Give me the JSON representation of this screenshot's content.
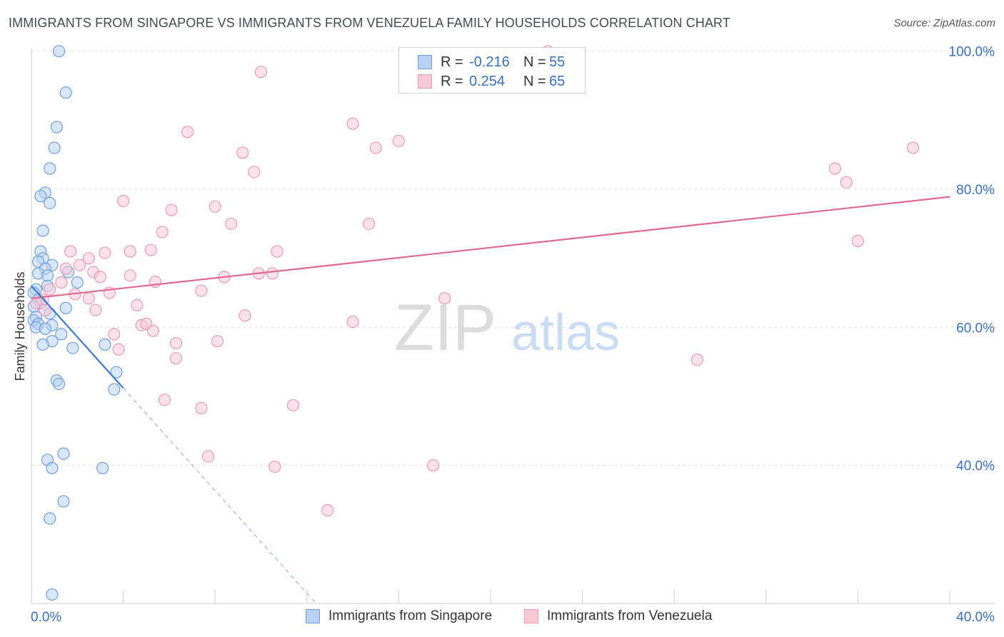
{
  "title": "IMMIGRANTS FROM SINGAPORE VS IMMIGRANTS FROM VENEZUELA FAMILY HOUSEHOLDS CORRELATION CHART",
  "source": "Source: ZipAtlas.com",
  "watermark": {
    "zip": "ZIP",
    "atlas": "atlas"
  },
  "legend": {
    "rows": [
      {
        "r_label": "R =",
        "r_value": "-0.216",
        "n_label": "N =",
        "n_value": "55"
      },
      {
        "r_label": "R =",
        "r_value": "0.254",
        "n_label": "N =",
        "n_value": "65"
      }
    ]
  },
  "colors": {
    "blue_fill": "#b8d1f3",
    "blue_stroke": "#6f9fde",
    "blue_line": "#3a7bd5",
    "pink_fill": "#f8c8d7",
    "pink_stroke": "#ec9ab5",
    "pink_line": "#e06893",
    "axis_label": "#3a6fc4",
    "grid": "#e0e0e0"
  },
  "chart_data": {
    "type": "scatter",
    "title": "IMMIGRANTS FROM SINGAPORE VS IMMIGRANTS FROM VENEZUELA FAMILY HOUSEHOLDS CORRELATION CHART",
    "xlabel": "",
    "ylabel": "Family Households",
    "xlim": [
      0,
      40
    ],
    "ylim": [
      20,
      101
    ],
    "x_tick_labels": [
      "0.0%",
      "40.0%"
    ],
    "y_ticks": [
      40,
      60,
      80,
      100
    ],
    "y_tick_labels": [
      "40.0%",
      "60.0%",
      "80.0%",
      "100.0%"
    ],
    "series": [
      {
        "name": "Immigrants from Singapore",
        "color": "blue",
        "points": [
          [
            1.2,
            100.0
          ],
          [
            1.5,
            94.0
          ],
          [
            1.1,
            89.0
          ],
          [
            1.0,
            86.0
          ],
          [
            0.8,
            83.0
          ],
          [
            0.6,
            79.5
          ],
          [
            0.4,
            79.0
          ],
          [
            0.8,
            78.0
          ],
          [
            0.5,
            74.0
          ],
          [
            0.4,
            71.0
          ],
          [
            0.5,
            70.0
          ],
          [
            0.3,
            69.5
          ],
          [
            0.9,
            69.0
          ],
          [
            0.6,
            68.5
          ],
          [
            1.6,
            68.0
          ],
          [
            0.3,
            67.8
          ],
          [
            0.7,
            67.5
          ],
          [
            2.0,
            66.5
          ],
          [
            0.7,
            66.0
          ],
          [
            0.2,
            65.5
          ],
          [
            0.1,
            65.0
          ],
          [
            0.3,
            64.0
          ],
          [
            0.4,
            63.5
          ],
          [
            0.1,
            63.0
          ],
          [
            1.5,
            62.8
          ],
          [
            0.8,
            62.0
          ],
          [
            0.2,
            61.5
          ],
          [
            0.1,
            61.0
          ],
          [
            0.3,
            60.5
          ],
          [
            0.9,
            60.3
          ],
          [
            0.2,
            60.0
          ],
          [
            0.6,
            59.8
          ],
          [
            1.3,
            59.0
          ],
          [
            0.9,
            58.0
          ],
          [
            0.5,
            57.5
          ],
          [
            1.8,
            57.0
          ],
          [
            3.2,
            57.5
          ],
          [
            3.7,
            53.5
          ],
          [
            1.1,
            52.3
          ],
          [
            1.2,
            51.8
          ],
          [
            3.6,
            51.0
          ],
          [
            1.4,
            41.7
          ],
          [
            0.7,
            40.8
          ],
          [
            0.9,
            39.6
          ],
          [
            3.1,
            39.6
          ],
          [
            1.4,
            34.8
          ],
          [
            0.8,
            32.3
          ],
          [
            0.9,
            21.3
          ]
        ]
      },
      {
        "name": "Immigrants from Venezuela",
        "color": "pink",
        "points": [
          [
            22.5,
            100.0
          ],
          [
            10.0,
            97.0
          ],
          [
            14.0,
            89.5
          ],
          [
            16.0,
            87.0
          ],
          [
            6.8,
            88.3
          ],
          [
            15.0,
            86.0
          ],
          [
            9.2,
            85.3
          ],
          [
            9.7,
            82.5
          ],
          [
            38.4,
            86.0
          ],
          [
            35.0,
            83.0
          ],
          [
            35.5,
            81.0
          ],
          [
            4.0,
            78.3
          ],
          [
            8.0,
            77.5
          ],
          [
            6.1,
            77.0
          ],
          [
            14.7,
            75.0
          ],
          [
            8.7,
            75.0
          ],
          [
            5.7,
            73.8
          ],
          [
            36.0,
            72.5
          ],
          [
            1.7,
            71.0
          ],
          [
            3.2,
            70.8
          ],
          [
            4.3,
            71.0
          ],
          [
            5.2,
            71.2
          ],
          [
            10.7,
            71.0
          ],
          [
            2.5,
            70.0
          ],
          [
            2.1,
            69.0
          ],
          [
            2.7,
            68.0
          ],
          [
            1.5,
            68.5
          ],
          [
            3.0,
            67.3
          ],
          [
            4.3,
            67.5
          ],
          [
            8.4,
            67.3
          ],
          [
            9.9,
            67.8
          ],
          [
            10.5,
            67.8
          ],
          [
            5.4,
            66.6
          ],
          [
            1.3,
            66.5
          ],
          [
            2.5,
            64.2
          ],
          [
            0.8,
            65.5
          ],
          [
            1.9,
            64.8
          ],
          [
            3.4,
            65.0
          ],
          [
            7.4,
            65.3
          ],
          [
            18.0,
            64.2
          ],
          [
            0.5,
            64.0
          ],
          [
            4.6,
            63.2
          ],
          [
            0.2,
            63.5
          ],
          [
            0.6,
            62.5
          ],
          [
            2.8,
            62.5
          ],
          [
            9.3,
            61.7
          ],
          [
            4.8,
            60.3
          ],
          [
            5.0,
            60.5
          ],
          [
            14.0,
            60.8
          ],
          [
            5.3,
            59.5
          ],
          [
            3.6,
            59.0
          ],
          [
            8.1,
            58.0
          ],
          [
            6.3,
            57.7
          ],
          [
            3.8,
            56.8
          ],
          [
            6.3,
            55.5
          ],
          [
            29.0,
            55.3
          ],
          [
            5.8,
            49.5
          ],
          [
            7.4,
            48.3
          ],
          [
            11.4,
            48.7
          ],
          [
            7.7,
            41.3
          ],
          [
            10.6,
            39.8
          ],
          [
            17.5,
            40.0
          ],
          [
            12.9,
            33.5
          ]
        ]
      }
    ],
    "trendlines": [
      {
        "series": "Immigrants from Singapore",
        "x0": 0.0,
        "y0": 66.0,
        "x1": 4.0,
        "y1": 51.2,
        "dashed_to_x": 12.4,
        "dashed_to_y": 20.0
      },
      {
        "series": "Immigrants from Venezuela",
        "x0": 0.0,
        "y0": 64.2,
        "x1": 40.0,
        "y1": 78.9
      }
    ]
  },
  "bottom_legend": {
    "items": [
      {
        "label": "Immigrants from Singapore"
      },
      {
        "label": "Immigrants from Venezuela"
      }
    ]
  }
}
